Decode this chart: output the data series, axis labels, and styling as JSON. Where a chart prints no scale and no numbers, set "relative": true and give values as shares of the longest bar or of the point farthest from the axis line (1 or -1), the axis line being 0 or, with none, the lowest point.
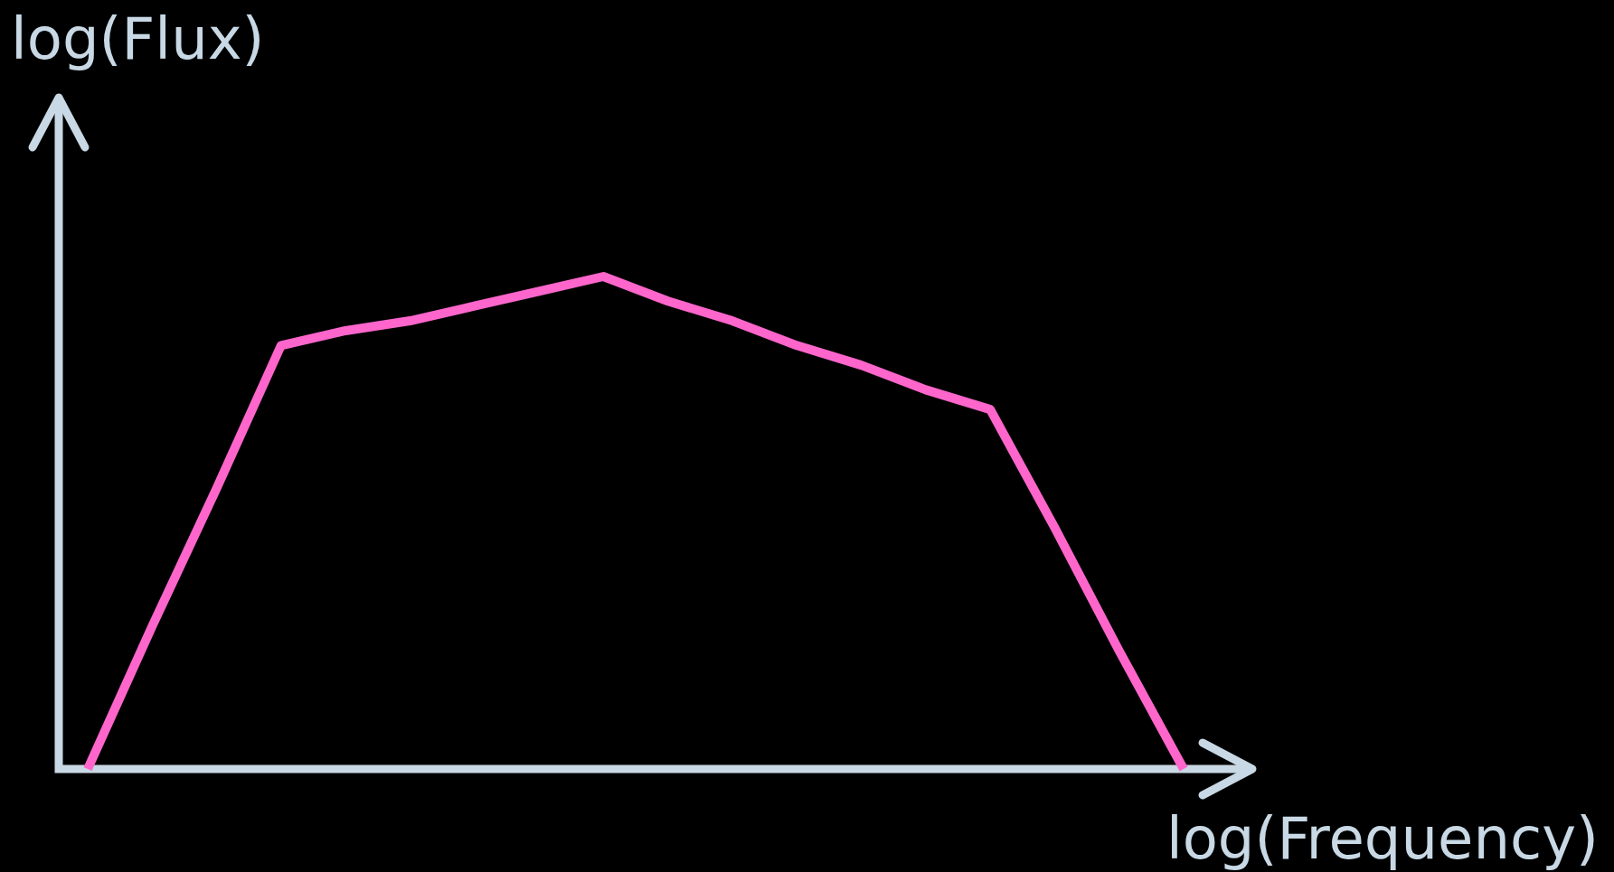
{
  "chart_data": {
    "type": "line",
    "xlabel": "log(Frequency)",
    "ylabel": "log(Flux)",
    "relative": true,
    "categories": [
      null,
      null,
      null,
      null,
      null,
      null,
      null,
      null,
      null,
      null,
      null,
      null,
      null,
      null,
      null,
      null,
      null,
      null
    ],
    "series": [
      {
        "color": "#ff66cc",
        "values": [
          0,
          0.29,
          0.57,
          0.86,
          0.89,
          0.91,
          0.94,
          0.97,
          1,
          0.95,
          0.91,
          0.86,
          0.82,
          0.77,
          0.73,
          0.49,
          0.24,
          0
        ]
      }
    ]
  }
}
